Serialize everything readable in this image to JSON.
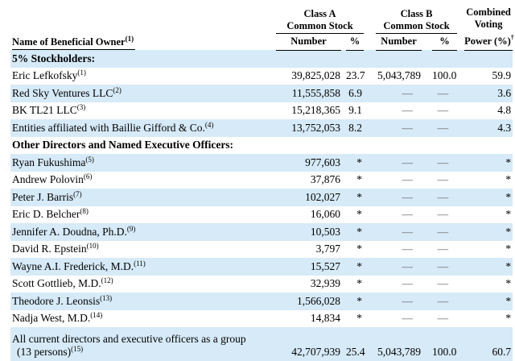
{
  "table": {
    "header": {
      "name": "Name of Beneficial Owner",
      "name_sup": "(1)",
      "class_a": "Class A",
      "class_b": "Class B",
      "common_stock": "Common Stock",
      "combined_line1": "Combined",
      "combined_line2": "Voting",
      "power": "Power (%)",
      "power_sup": "†",
      "number": "Number",
      "pct": "%"
    },
    "rows": [
      {
        "type": "section",
        "label": "5% Stockholders:",
        "shaded": true
      },
      {
        "type": "holder",
        "name": "Eric Lefkofsky",
        "sup": "(1)",
        "a_num": "39,825,028",
        "a_pct": "23.7",
        "b_num": "5,043,789",
        "b_pct": "100.0",
        "comb": "59.9",
        "shaded": false
      },
      {
        "type": "holder",
        "name": "Red Sky Ventures LLC",
        "sup": "(2)",
        "a_num": "11,555,858",
        "a_pct": "6.9",
        "b_num": "—",
        "b_pct": "—",
        "comb": "3.6",
        "shaded": true
      },
      {
        "type": "holder",
        "name": "BK TL21 LLC",
        "sup": "(3)",
        "a_num": "15,218,365",
        "a_pct": "9.1",
        "b_num": "—",
        "b_pct": "—",
        "comb": "4.8",
        "shaded": false
      },
      {
        "type": "holder",
        "name": "Entities affiliated with Baillie Gifford & Co.",
        "sup": "(4)",
        "a_num": "13,752,053",
        "a_pct": "8.2",
        "b_num": "—",
        "b_pct": "—",
        "comb": "4.3",
        "shaded": true
      },
      {
        "type": "section",
        "label": "Other Directors and Named Executive Officers:",
        "shaded": false
      },
      {
        "type": "holder",
        "name": "Ryan Fukushima",
        "sup": "(5)",
        "a_num": "977,603",
        "a_pct": "*",
        "b_num": "—",
        "b_pct": "—",
        "comb": "*",
        "shaded": true
      },
      {
        "type": "holder",
        "name": "Andrew Polovin",
        "sup": "(6)",
        "a_num": "37,876",
        "a_pct": "*",
        "b_num": "—",
        "b_pct": "—",
        "comb": "*",
        "shaded": false
      },
      {
        "type": "holder",
        "name": "Peter J. Barris",
        "sup": "(7)",
        "a_num": "102,027",
        "a_pct": "*",
        "b_num": "—",
        "b_pct": "—",
        "comb": "*",
        "shaded": true
      },
      {
        "type": "holder",
        "name": "Eric D. Belcher",
        "sup": "(8)",
        "a_num": "16,060",
        "a_pct": "*",
        "b_num": "—",
        "b_pct": "—",
        "comb": "*",
        "shaded": false
      },
      {
        "type": "holder",
        "name": "Jennifer A. Doudna, Ph.D.",
        "sup": "(9)",
        "a_num": "10,503",
        "a_pct": "*",
        "b_num": "—",
        "b_pct": "—",
        "comb": "*",
        "shaded": true
      },
      {
        "type": "holder",
        "name": "David R. Epstein",
        "sup": "(10)",
        "a_num": "3,797",
        "a_pct": "*",
        "b_num": "—",
        "b_pct": "—",
        "comb": "*",
        "shaded": false
      },
      {
        "type": "holder",
        "name": "Wayne A.I. Frederick, M.D.",
        "sup": "(11)",
        "a_num": "15,527",
        "a_pct": "*",
        "b_num": "—",
        "b_pct": "—",
        "comb": "*",
        "shaded": true
      },
      {
        "type": "holder",
        "name": "Scott Gottlieb, M.D.",
        "sup": "(12)",
        "a_num": "32,939",
        "a_pct": "*",
        "b_num": "—",
        "b_pct": "—",
        "comb": "*",
        "shaded": false
      },
      {
        "type": "holder",
        "name": "Theodore J. Leonsis",
        "sup": "(13)",
        "a_num": "1,566,028",
        "a_pct": "*",
        "b_num": "—",
        "b_pct": "—",
        "comb": "*",
        "shaded": true
      },
      {
        "type": "holder",
        "name": "Nadja West, M.D.",
        "sup": "(14)",
        "a_num": "14,834",
        "a_pct": "*",
        "b_num": "—",
        "b_pct": "—",
        "comb": "*",
        "shaded": false
      },
      {
        "type": "group",
        "line1": "All current directors and executive officers as a group",
        "line2": "(13 persons)",
        "sup": "(15)",
        "a_num": "42,707,939",
        "a_pct": "25.4",
        "b_num": "5,043,789",
        "b_pct": "100.0",
        "comb": "60.7",
        "shaded": true
      }
    ]
  },
  "colors": {
    "stripe": "#d6eaf8",
    "rule": "#000000",
    "dash": "#666666"
  }
}
